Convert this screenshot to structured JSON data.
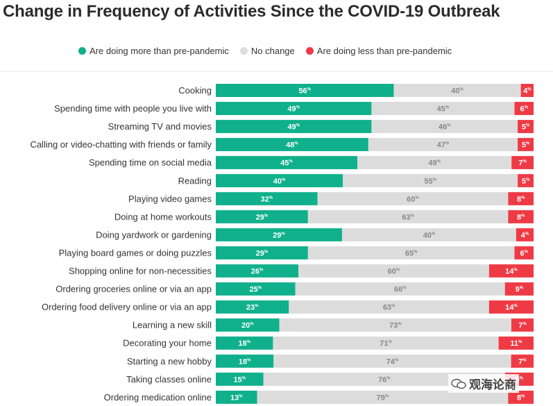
{
  "title": "Change in Frequency of Activities Since the COVID-19 Outbreak",
  "legend": [
    {
      "label": "Are doing more than pre-pandemic",
      "color": "#0fb08b"
    },
    {
      "label": "No change",
      "color": "#dcdcdc"
    },
    {
      "label": "Are doing less than pre-pandemic",
      "color": "#ee3a45"
    }
  ],
  "watermark": "观海论商",
  "chart_data": {
    "type": "bar",
    "orientation": "horizontal",
    "stacked": true,
    "value_suffix": "%",
    "categories": [
      "Cooking",
      "Spending time with people you live with",
      "Streaming TV and movies",
      "Calling or video-chatting with friends or family",
      "Spending time on social media",
      "Reading",
      "Playing video games",
      "Doing at home workouts",
      "Doing yardwork or gardening",
      "Playing board games or doing puzzles",
      "Shopping online for non-necessities",
      "Ordering groceries online or via an app",
      "Ordering food delivery online or via an app",
      "Learning a new skill",
      "Decorating your home",
      "Starting a new hobby",
      "Taking classes online",
      "Ordering medication online"
    ],
    "series": [
      {
        "name": "Are doing more than pre-pandemic",
        "color": "#0fb08b",
        "values": [
          56,
          49,
          49,
          48,
          45,
          40,
          32,
          29,
          29,
          29,
          26,
          25,
          23,
          20,
          18,
          18,
          15,
          13
        ]
      },
      {
        "name": "No change",
        "color": "#dcdcdc",
        "values": [
          40,
          45,
          46,
          47,
          49,
          55,
          60,
          63,
          40,
          65,
          60,
          66,
          63,
          73,
          71,
          74,
          76,
          79
        ]
      },
      {
        "name": "Are doing less than pre-pandemic",
        "color": "#ee3a45",
        "values": [
          4,
          6,
          5,
          5,
          7,
          5,
          8,
          8,
          4,
          6,
          14,
          9,
          14,
          7,
          11,
          7,
          9,
          8
        ]
      }
    ],
    "legend_position": "top",
    "grid": false
  }
}
